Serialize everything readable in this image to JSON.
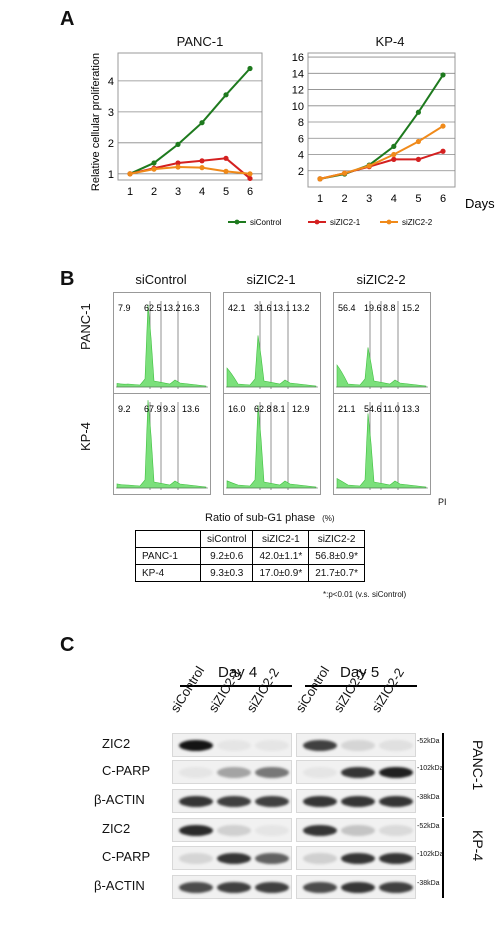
{
  "panels": {
    "a": "A",
    "b": "B",
    "c": "C"
  },
  "chart_data": [
    {
      "type": "line",
      "title": "PANC-1",
      "ylabel": "Relative cellular proliferation",
      "xlabel": "",
      "x": [
        1,
        2,
        3,
        4,
        5,
        6
      ],
      "x_ticks": [
        "1",
        "2",
        "3",
        "4",
        "5",
        "6"
      ],
      "y_ticks": [
        "1",
        "2",
        "3",
        "4"
      ],
      "ylim": [
        0.8,
        4.9
      ],
      "grid": true,
      "series": [
        {
          "name": "siControl",
          "color": "#1e7a1e",
          "values": [
            1.0,
            1.35,
            1.95,
            2.65,
            3.55,
            4.4
          ]
        },
        {
          "name": "siZIC2-1",
          "color": "#d42020",
          "values": [
            1.0,
            1.18,
            1.35,
            1.42,
            1.5,
            0.85
          ]
        },
        {
          "name": "siZIC2-2",
          "color": "#f08a1a",
          "values": [
            1.0,
            1.15,
            1.22,
            1.2,
            1.08,
            1.0
          ]
        }
      ]
    },
    {
      "type": "line",
      "title": "KP-4",
      "xlabel": "Days",
      "ylabel": "",
      "x": [
        1,
        2,
        3,
        4,
        5,
        6
      ],
      "x_ticks": [
        "1",
        "2",
        "3",
        "4",
        "5",
        "6"
      ],
      "y_ticks": [
        "2",
        "4",
        "6",
        "8",
        "10",
        "12",
        "14",
        "16"
      ],
      "ylim": [
        0,
        16.5
      ],
      "grid": true,
      "series": [
        {
          "name": "siControl",
          "color": "#1e7a1e",
          "values": [
            1.0,
            1.6,
            2.7,
            5.0,
            9.2,
            13.8
          ]
        },
        {
          "name": "siZIC2-1",
          "color": "#d42020",
          "values": [
            1.0,
            1.7,
            2.5,
            3.4,
            3.4,
            4.4
          ]
        },
        {
          "name": "siZIC2-2",
          "color": "#f08a1a",
          "values": [
            1.0,
            1.7,
            2.6,
            4.0,
            5.6,
            7.5
          ]
        }
      ]
    }
  ],
  "legend": [
    "siControl",
    "siZIC2-1",
    "siZIC2-2"
  ],
  "flow": {
    "columns": [
      "siControl",
      "siZIC2-1",
      "siZIC2-2"
    ],
    "rows": [
      "PANC-1",
      "KP-4"
    ],
    "values": [
      [
        [
          "7.9",
          "62.5",
          "13.2",
          "16.3"
        ],
        [
          "42.1",
          "31.6",
          "13.1",
          "13.2"
        ],
        [
          "56.4",
          "19.6",
          "8.8",
          "15.2"
        ]
      ],
      [
        [
          "9.2",
          "67.9",
          "9.3",
          "13.6"
        ],
        [
          "16.0",
          "62.8",
          "8.1",
          "12.9"
        ],
        [
          "21.1",
          "54.6",
          "11.0",
          "13.3"
        ]
      ]
    ],
    "axis_label": "PI"
  },
  "subg1": {
    "title": "Ratio of sub-G1 phase",
    "unit": "(%)",
    "header": [
      "",
      "siControl",
      "siZIC2-1",
      "siZIC2-2"
    ],
    "rows": [
      [
        "PANC-1",
        "9.2±0.6",
        "42.0±1.1*",
        "56.8±0.9*"
      ],
      [
        "KP-4",
        "9.3±0.3",
        "17.0±0.9*",
        "21.7±0.7*"
      ]
    ],
    "note": "*:p<0.01 (v.s. siControl)"
  },
  "western": {
    "days": [
      "Day 4",
      "Day 5"
    ],
    "lanes": [
      "siControl",
      "siZIC2-1",
      "siZIC2-2",
      "siControl",
      "siZIC2-1",
      "siZIC2-2"
    ],
    "rows": [
      "ZIC2",
      "C-PARP",
      "β-ACTIN",
      "ZIC2",
      "C-PARP",
      "β-ACTIN"
    ],
    "kda": [
      "-52kDa",
      "-102kDa",
      "-38kDa",
      "-52kDa",
      "-102kDa",
      "-38kDa"
    ],
    "cell_lines": [
      "PANC-1",
      "KP-4"
    ]
  }
}
